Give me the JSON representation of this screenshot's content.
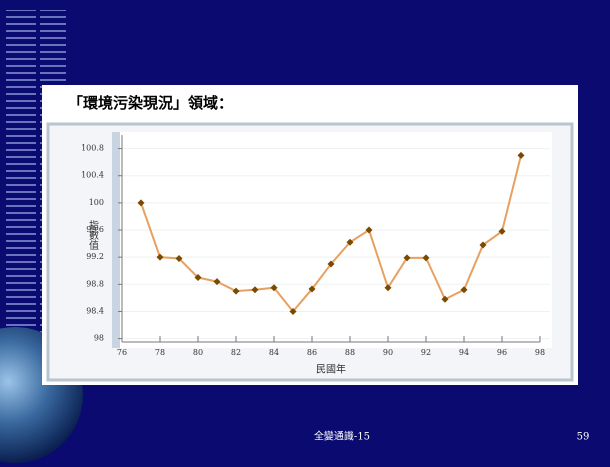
{
  "slide": {
    "footer": "全變通識-15",
    "page": "59"
  },
  "chart_data": {
    "type": "line",
    "title": "「環境污染現況」領域：",
    "x_label": "民國年",
    "y_label": "指數值",
    "x": [
      77,
      78,
      79,
      80,
      81,
      82,
      83,
      84,
      85,
      86,
      87,
      88,
      89,
      90,
      91,
      92,
      93,
      94,
      95,
      96,
      97
    ],
    "values": [
      100,
      99.2,
      99.18,
      98.9,
      98.84,
      98.7,
      98.72,
      98.75,
      98.4,
      98.73,
      99.1,
      99.42,
      99.6,
      98.75,
      99.19,
      99.19,
      98.58,
      98.72,
      99.38,
      99.58,
      100.7
    ],
    "color": "#e8a060",
    "marker_color": "#7a4a00",
    "xlim": [
      76,
      98
    ],
    "xticks": [
      76,
      78,
      80,
      82,
      84,
      86,
      88,
      90,
      92,
      94,
      96,
      98
    ],
    "ylim": [
      97.95,
      101
    ],
    "yticks": [
      98,
      98.4,
      98.8,
      99.2,
      99.6,
      100,
      100.4,
      100.8
    ],
    "grid": true
  }
}
